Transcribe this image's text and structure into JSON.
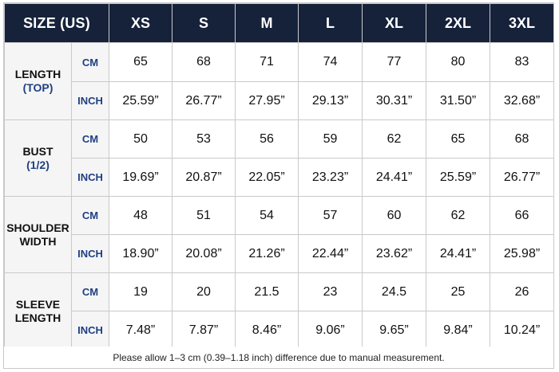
{
  "header": {
    "label": "SIZE (US)",
    "sizes": [
      "XS",
      "S",
      "M",
      "L",
      "XL",
      "2XL",
      "3XL"
    ]
  },
  "groups": [
    {
      "title": "LENGTH",
      "subtitle": "(TOP)",
      "rows": [
        {
          "unit": "CM",
          "values": [
            "65",
            "68",
            "71",
            "74",
            "77",
            "80",
            "83"
          ]
        },
        {
          "unit": "INCH",
          "values": [
            "25.59”",
            "26.77”",
            "27.95”",
            "29.13”",
            "30.31”",
            "31.50”",
            "32.68”"
          ]
        }
      ]
    },
    {
      "title": "BUST",
      "subtitle": "(1/2)",
      "rows": [
        {
          "unit": "CM",
          "values": [
            "50",
            "53",
            "56",
            "59",
            "62",
            "65",
            "68"
          ]
        },
        {
          "unit": "INCH",
          "values": [
            "19.69”",
            "20.87”",
            "22.05”",
            "23.23”",
            "24.41”",
            "25.59”",
            "26.77”"
          ]
        }
      ]
    },
    {
      "title": "SHOULDER",
      "subtitle": "WIDTH",
      "subtitle_dark": true,
      "rows": [
        {
          "unit": "CM",
          "values": [
            "48",
            "51",
            "54",
            "57",
            "60",
            "62",
            "66"
          ]
        },
        {
          "unit": "INCH",
          "values": [
            "18.90”",
            "20.08”",
            "21.26”",
            "22.44”",
            "23.62”",
            "24.41”",
            "25.98”"
          ]
        }
      ]
    },
    {
      "title": "SLEEVE",
      "subtitle": "LENGTH",
      "subtitle_dark": true,
      "rows": [
        {
          "unit": "CM",
          "values": [
            "19",
            "20",
            "21.5",
            "23",
            "24.5",
            "25",
            "26"
          ]
        },
        {
          "unit": "INCH",
          "values": [
            "7.48”",
            "7.87”",
            "8.46”",
            "9.06”",
            "9.65”",
            "9.84”",
            "10.24”"
          ]
        }
      ]
    }
  ],
  "note": "Please allow 1–3 cm (0.39–1.18 inch) difference due to manual measurement.",
  "colors": {
    "header_bg": "#16223a",
    "accent_blue": "#1e3f84",
    "label_bg": "#f5f5f5",
    "border": "#c9c9c9"
  }
}
